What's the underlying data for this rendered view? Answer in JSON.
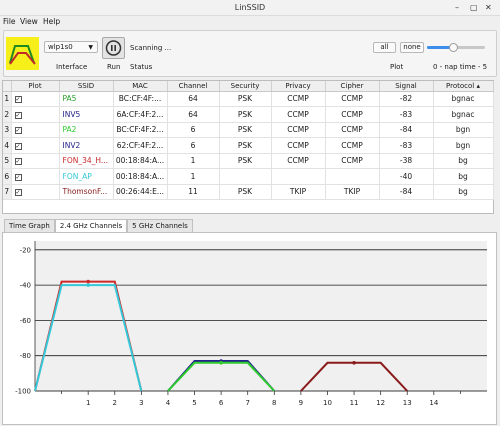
{
  "window": {
    "title": "LinSSID",
    "minimize": "–",
    "maximize": "▢",
    "close": "✕"
  },
  "menu": [
    "File",
    "View",
    "Help"
  ],
  "toolbar": {
    "interface_value": "wlp1s0",
    "interface_label": "Interface",
    "run_label": "Run",
    "status_text": "Scanning ...",
    "status_label": "Status",
    "all_label": "all",
    "none_label": "none",
    "plot_label": "Plot",
    "nap_text": "0 - nap time - 5",
    "nap_value": 0.45
  },
  "table": {
    "headers": [
      "Plot",
      "SSID",
      "MAC",
      "Channel",
      "Security",
      "Privacy",
      "Cipher",
      "Signal",
      "Protocol"
    ],
    "sort_indicator": "▴",
    "rows": [
      {
        "num": "1",
        "ssid": "PA5",
        "color": "#2a9d2a",
        "mac": "BC:CF:4F:...",
        "channel": "64",
        "security": "PSK",
        "privacy": "CCMP",
        "cipher": "CCMP",
        "signal": "-82",
        "protocol": "bgnac"
      },
      {
        "num": "2",
        "ssid": "INV5",
        "color": "#22228a",
        "mac": "6A:CF:4F:2...",
        "channel": "64",
        "security": "PSK",
        "privacy": "CCMP",
        "cipher": "CCMP",
        "signal": "-83",
        "protocol": "bgnac"
      },
      {
        "num": "3",
        "ssid": "PA2",
        "color": "#2ecc2e",
        "mac": "BC:CF:4F:2...",
        "channel": "6",
        "security": "PSK",
        "privacy": "CCMP",
        "cipher": "CCMP",
        "signal": "-84",
        "protocol": "bgn"
      },
      {
        "num": "4",
        "ssid": "INV2",
        "color": "#22228a",
        "mac": "62:CF:4F:2...",
        "channel": "6",
        "security": "PSK",
        "privacy": "CCMP",
        "cipher": "CCMP",
        "signal": "-83",
        "protocol": "bgn"
      },
      {
        "num": "5",
        "ssid": "FON_34_H...",
        "color": "#cc2a2a",
        "mac": "00:18:84:A...",
        "channel": "1",
        "security": "PSK",
        "privacy": "CCMP",
        "cipher": "CCMP",
        "signal": "-38",
        "protocol": "bg"
      },
      {
        "num": "6",
        "ssid": "FON_AP",
        "color": "#35c8d8",
        "mac": "00:18:84:A...",
        "channel": "1",
        "security": "",
        "privacy": "",
        "cipher": "",
        "signal": "-40",
        "protocol": "bg"
      },
      {
        "num": "7",
        "ssid": "ThomsonF...",
        "color": "#8a1a1a",
        "mac": "00:26:44:E...",
        "channel": "11",
        "security": "PSK",
        "privacy": "TKIP",
        "cipher": "TKIP",
        "signal": "-84",
        "protocol": "bg"
      }
    ]
  },
  "tabs": [
    "Time Graph",
    "2.4 GHz Channels",
    "5 GHz Channels"
  ],
  "active_tab": 1,
  "chart_data": {
    "type": "line",
    "y_ticks": [
      "-20",
      "-40",
      "-60",
      "-80",
      "-100"
    ],
    "x_ticks": [
      "1",
      "2",
      "3",
      "4",
      "5",
      "6",
      "7",
      "8",
      "9",
      "10",
      "11",
      "12",
      "13",
      "14"
    ],
    "xlim": [
      -1,
      16
    ],
    "ylim": [
      -100,
      -15
    ],
    "grid": true,
    "series": [
      {
        "color": "#cc2a2a",
        "channel": 1,
        "signal": -38
      },
      {
        "color": "#35c8d8",
        "channel": 1,
        "signal": -40
      },
      {
        "color": "#22228a",
        "channel": 6,
        "signal": -83
      },
      {
        "color": "#2ecc2e",
        "channel": 6,
        "signal": -84
      },
      {
        "color": "#8a1a1a",
        "channel": 11,
        "signal": -84
      }
    ]
  }
}
